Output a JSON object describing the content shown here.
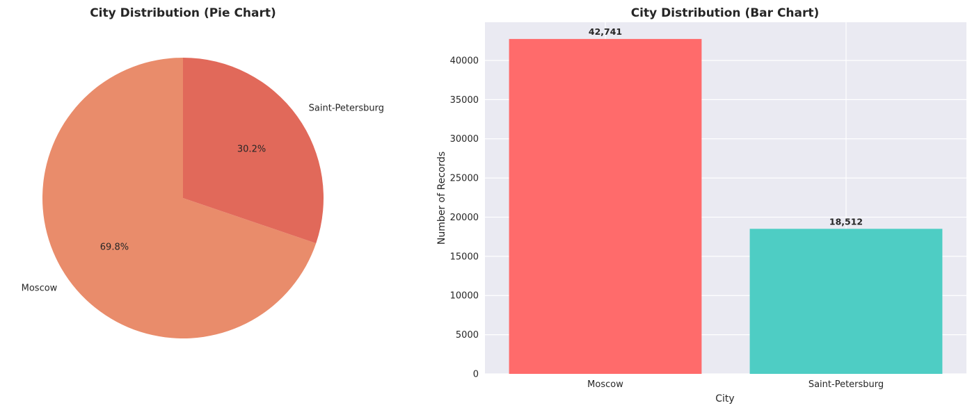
{
  "chart_data": [
    {
      "type": "pie",
      "title": "City Distribution (Pie Chart)",
      "categories": [
        "Moscow",
        "Saint-Petersburg"
      ],
      "values": [
        42741,
        18512
      ],
      "percent_labels": [
        "69.8%",
        "30.2%"
      ],
      "colors": [
        "#e98c6b",
        "#e1695a"
      ],
      "start_angle_deg": 90,
      "direction": "counterclockwise"
    },
    {
      "type": "bar",
      "title": "City Distribution (Bar Chart)",
      "categories": [
        "Moscow",
        "Saint-Petersburg"
      ],
      "values": [
        42741,
        18512
      ],
      "value_labels": [
        "42,741",
        "18,512"
      ],
      "colors": [
        "#ff6b6b",
        "#4ecdc4"
      ],
      "xlabel": "City",
      "ylabel": "Number of Records",
      "ylim": [
        0,
        44878
      ],
      "yticks": [
        0,
        5000,
        10000,
        15000,
        20000,
        25000,
        30000,
        35000,
        40000
      ],
      "grid": true,
      "background": "#eaeaf2",
      "grid_color": "#ffffff"
    }
  ]
}
